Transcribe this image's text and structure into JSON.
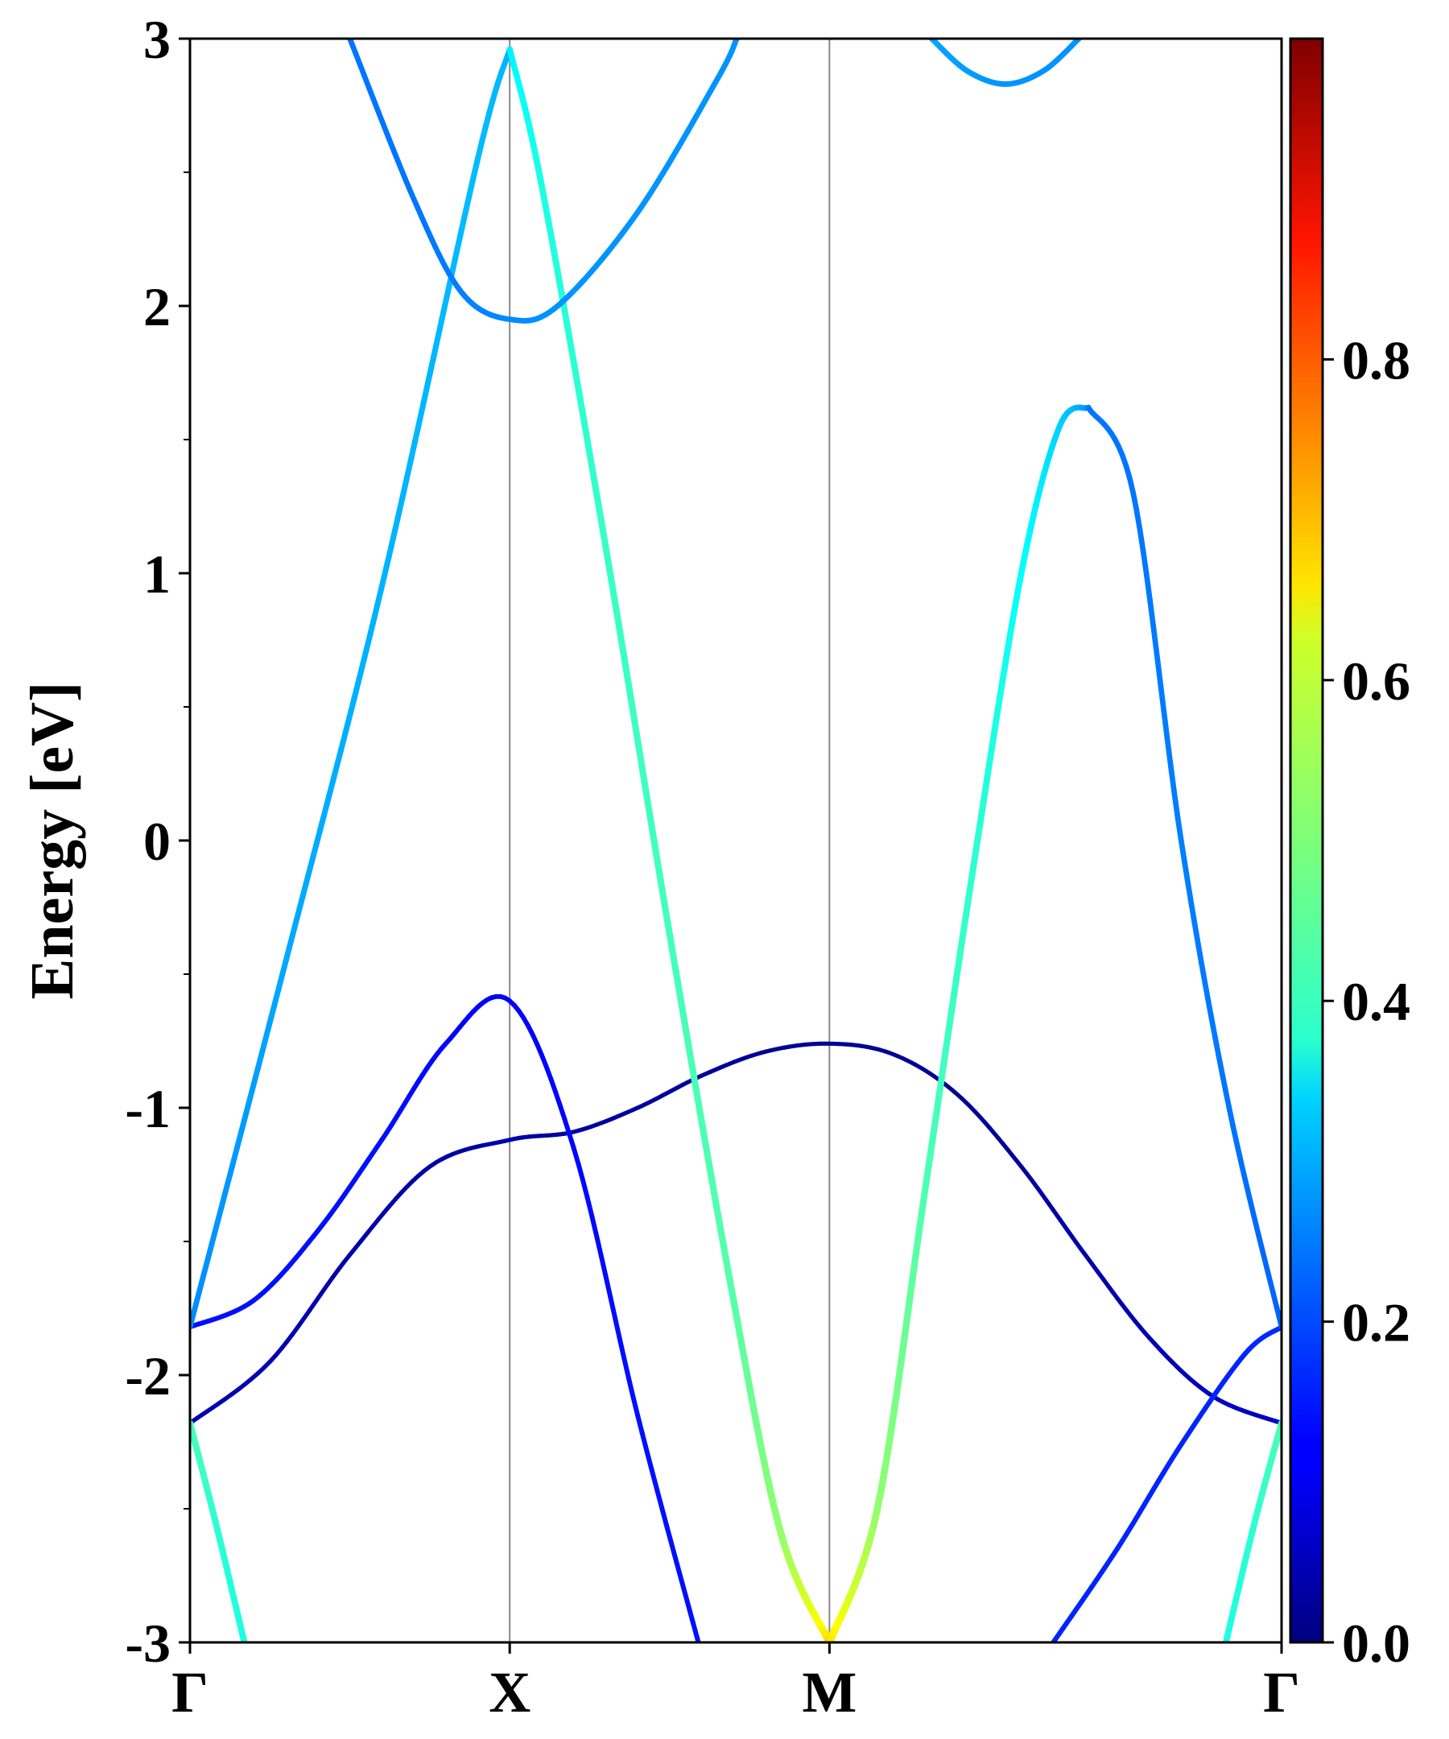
{
  "chart_data": {
    "type": "line",
    "ylabel": "Energy [eV]",
    "ylim": [
      -3,
      3
    ],
    "yticks": [
      {
        "value": -3,
        "label": "-3"
      },
      {
        "value": -2,
        "label": "-2"
      },
      {
        "value": -1,
        "label": "-1"
      },
      {
        "value": 0,
        "label": "0"
      },
      {
        "value": 1,
        "label": "1"
      },
      {
        "value": 2,
        "label": "2"
      },
      {
        "value": 3,
        "label": "3"
      }
    ],
    "yminor_ticks": [
      -2.5,
      -1.5,
      -0.5,
      0.5,
      1.5,
      2.5
    ],
    "kpath": [
      {
        "label": "Γ",
        "k": 0.0
      },
      {
        "label": "X",
        "k": 1.0
      },
      {
        "label": "M",
        "k": 2.0
      },
      {
        "label": "Γ",
        "k": 3.414
      }
    ],
    "xlim": [
      0,
      3.414
    ],
    "colorbar": {
      "colormap": "jet",
      "range": [
        0,
        1
      ],
      "ticks": [
        {
          "value": 0.0,
          "label": "0.0"
        },
        {
          "value": 0.2,
          "label": "0.2"
        },
        {
          "value": 0.4,
          "label": "0.4"
        },
        {
          "value": 0.6,
          "label": "0.6"
        },
        {
          "value": 0.8,
          "label": "0.8"
        }
      ]
    },
    "bands": [
      {
        "points": [
          {
            "k": 0.0,
            "e": -2.18,
            "w": 0.05
          },
          {
            "k": 0.25,
            "e": -1.95,
            "w": 0.05
          },
          {
            "k": 0.5,
            "e": -1.55,
            "w": 0.04
          },
          {
            "k": 0.75,
            "e": -1.22,
            "w": 0.04
          },
          {
            "k": 1.0,
            "e": -1.12,
            "w": 0.04
          },
          {
            "k": 1.2,
            "e": -1.09,
            "w": 0.03
          },
          {
            "k": 1.4,
            "e": -1.0,
            "w": 0.03
          },
          {
            "k": 1.6,
            "e": -0.88,
            "w": 0.03
          },
          {
            "k": 1.8,
            "e": -0.79,
            "w": 0.02
          },
          {
            "k": 2.0,
            "e": -0.76,
            "w": 0.02
          },
          {
            "k": 2.2,
            "e": -0.8,
            "w": 0.02
          },
          {
            "k": 2.4,
            "e": -0.95,
            "w": 0.02
          },
          {
            "k": 2.6,
            "e": -1.22,
            "w": 0.03
          },
          {
            "k": 2.8,
            "e": -1.55,
            "w": 0.04
          },
          {
            "k": 3.0,
            "e": -1.86,
            "w": 0.05
          },
          {
            "k": 3.2,
            "e": -2.08,
            "w": 0.06
          },
          {
            "k": 3.414,
            "e": -2.18,
            "w": 0.07
          }
        ]
      },
      {
        "points": [
          {
            "k": 0.0,
            "e": -1.82,
            "w": 0.14
          },
          {
            "k": 0.2,
            "e": -1.72,
            "w": 0.14
          },
          {
            "k": 0.4,
            "e": -1.46,
            "w": 0.14
          },
          {
            "k": 0.6,
            "e": -1.12,
            "w": 0.14
          },
          {
            "k": 0.8,
            "e": -0.76,
            "w": 0.13
          },
          {
            "k": 1.0,
            "e": -0.6,
            "w": 0.12
          },
          {
            "k": 1.2,
            "e": -1.15,
            "w": 0.13
          },
          {
            "k": 1.4,
            "e": -2.15,
            "w": 0.14
          },
          {
            "k": 1.59,
            "e": -3.0,
            "w": 0.14
          }
        ]
      },
      {
        "points": [
          {
            "k": 2.7,
            "e": -3.0,
            "w": 0.16
          },
          {
            "k": 2.9,
            "e": -2.65,
            "w": 0.16
          },
          {
            "k": 3.1,
            "e": -2.26,
            "w": 0.16
          },
          {
            "k": 3.3,
            "e": -1.92,
            "w": 0.16
          },
          {
            "k": 3.414,
            "e": -1.82,
            "w": 0.17
          }
        ]
      },
      {
        "points": [
          {
            "k": 0.0,
            "e": -1.82,
            "w": 0.26
          },
          {
            "k": 0.3,
            "e": -0.45,
            "w": 0.29
          },
          {
            "k": 0.6,
            "e": 0.95,
            "w": 0.3
          },
          {
            "k": 0.9,
            "e": 2.55,
            "w": 0.31
          },
          {
            "k": 1.0,
            "e": 2.96,
            "w": 0.3
          }
        ]
      },
      {
        "points": [
          {
            "k": 1.0,
            "e": 2.96,
            "w": 0.36
          },
          {
            "k": 1.1,
            "e": 2.45,
            "w": 0.4
          },
          {
            "k": 1.3,
            "e": 1.1,
            "w": 0.43
          },
          {
            "k": 1.5,
            "e": -0.35,
            "w": 0.44
          },
          {
            "k": 1.7,
            "e": -1.72,
            "w": 0.46
          },
          {
            "k": 1.85,
            "e": -2.6,
            "w": 0.52
          },
          {
            "k": 2.0,
            "e": -3.0,
            "w": 0.66
          }
        ]
      },
      {
        "points": [
          {
            "k": 2.0,
            "e": -3.0,
            "w": 0.66
          },
          {
            "k": 2.15,
            "e": -2.5,
            "w": 0.52
          },
          {
            "k": 2.3,
            "e": -1.3,
            "w": 0.45
          },
          {
            "k": 2.45,
            "e": -0.1,
            "w": 0.42
          },
          {
            "k": 2.6,
            "e": 1.0,
            "w": 0.38
          },
          {
            "k": 2.72,
            "e": 1.55,
            "w": 0.33
          },
          {
            "k": 2.81,
            "e": 1.62,
            "w": 0.27
          }
        ]
      },
      {
        "points": [
          {
            "k": 2.81,
            "e": 1.62,
            "w": 0.24
          },
          {
            "k": 2.95,
            "e": 1.3,
            "w": 0.24
          },
          {
            "k": 3.1,
            "e": 0.0,
            "w": 0.25
          },
          {
            "k": 3.25,
            "e": -1.0,
            "w": 0.24
          },
          {
            "k": 3.414,
            "e": -1.82,
            "w": 0.22
          }
        ]
      },
      {
        "points": [
          {
            "k": 0.0,
            "e": -2.18,
            "w": 0.45
          },
          {
            "k": 0.08,
            "e": -2.55,
            "w": 0.42
          },
          {
            "k": 0.17,
            "e": -3.0,
            "w": 0.4
          }
        ]
      },
      {
        "points": [
          {
            "k": 3.24,
            "e": -3.0,
            "w": 0.4
          },
          {
            "k": 3.33,
            "e": -2.55,
            "w": 0.42
          },
          {
            "k": 3.414,
            "e": -2.18,
            "w": 0.45
          }
        ]
      },
      {
        "points": [
          {
            "k": 0.5,
            "e": 3.0,
            "w": 0.24
          },
          {
            "k": 0.7,
            "e": 2.4,
            "w": 0.24
          },
          {
            "k": 0.85,
            "e": 2.05,
            "w": 0.25
          },
          {
            "k": 1.0,
            "e": 1.95,
            "w": 0.26
          },
          {
            "k": 1.15,
            "e": 2.0,
            "w": 0.27
          },
          {
            "k": 1.4,
            "e": 2.35,
            "w": 0.27
          },
          {
            "k": 1.65,
            "e": 2.85,
            "w": 0.27
          },
          {
            "k": 1.71,
            "e": 3.0,
            "w": 0.27
          }
        ]
      },
      {
        "points": [
          {
            "k": 2.32,
            "e": 3.0,
            "w": 0.29
          },
          {
            "k": 2.43,
            "e": 2.88,
            "w": 0.28
          },
          {
            "k": 2.55,
            "e": 2.83,
            "w": 0.27
          },
          {
            "k": 2.67,
            "e": 2.88,
            "w": 0.27
          },
          {
            "k": 2.78,
            "e": 3.0,
            "w": 0.27
          }
        ]
      }
    ]
  }
}
